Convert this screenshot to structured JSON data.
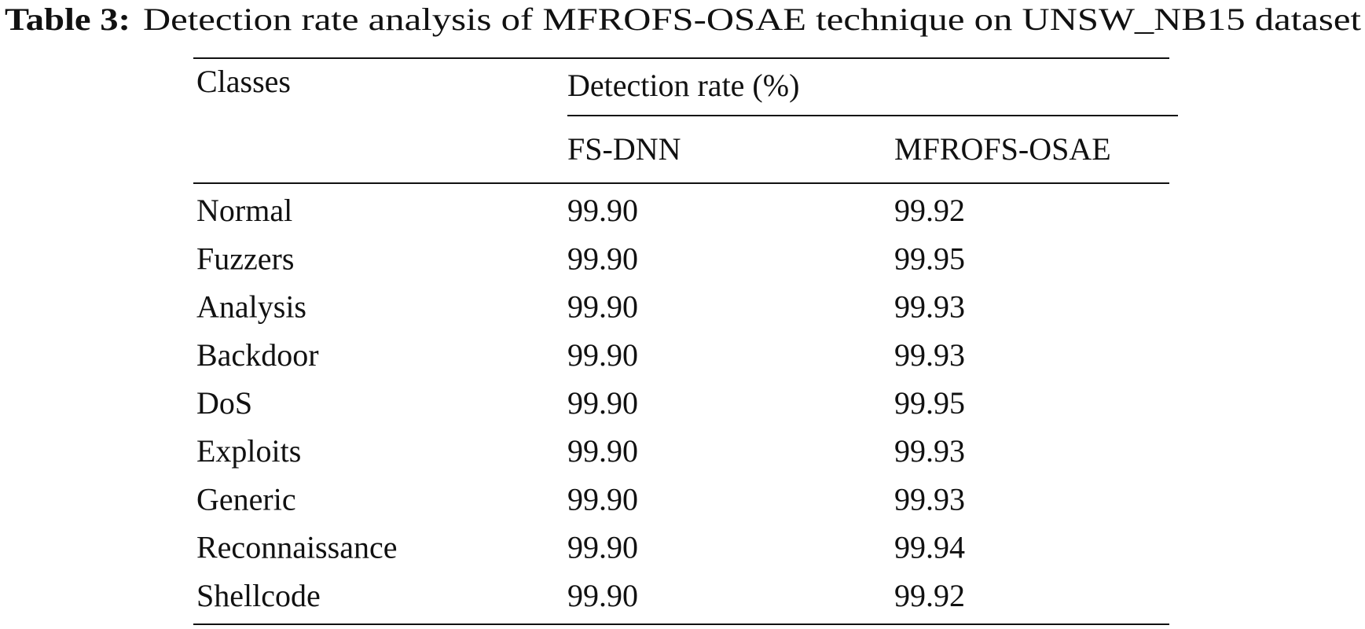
{
  "caption": {
    "label": "Table 3:",
    "text": "Detection rate analysis of MFROFS-OSAE technique on UNSW_NB15 dataset"
  },
  "table": {
    "header": {
      "classes": "Classes",
      "group": "Detection rate (%)",
      "columns": [
        "FS-DNN",
        "MFROFS-OSAE"
      ]
    },
    "rows": [
      [
        "Normal",
        "99.90",
        "99.92"
      ],
      [
        "Fuzzers",
        "99.90",
        "99.95"
      ],
      [
        "Analysis",
        "99.90",
        "99.93"
      ],
      [
        "Backdoor",
        "99.90",
        "99.93"
      ],
      [
        "DoS",
        "99.90",
        "99.95"
      ],
      [
        "Exploits",
        "99.90",
        "99.93"
      ],
      [
        "Generic",
        "99.90",
        "99.93"
      ],
      [
        "Reconnaissance",
        "99.90",
        "99.94"
      ],
      [
        "Shellcode",
        "99.90",
        "99.92"
      ]
    ]
  }
}
